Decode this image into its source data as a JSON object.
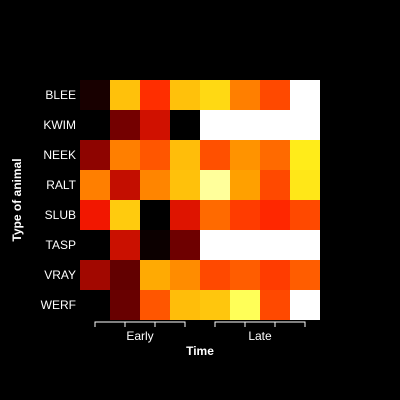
{
  "chart_data": {
    "type": "heatmap",
    "ylabel": "Type of animal",
    "xlabel": "Time",
    "rows": [
      "BLEE",
      "KWIM",
      "NEEK",
      "RALT",
      "SLUB",
      "TASP",
      "VRAY",
      "WERF"
    ],
    "columns": 8,
    "column_groups": [
      {
        "label": "Early",
        "columns": [
          1,
          2,
          3,
          4
        ]
      },
      {
        "label": "Late",
        "columns": [
          5,
          6,
          7,
          8
        ]
      }
    ],
    "colormap": "heat (black to red to yellow to white)",
    "colorscale_stops": [
      "#000000",
      "#7a0000",
      "#ff1a00",
      "#ffa000",
      "#ffff20",
      "#ffffff"
    ],
    "value_range": [
      0,
      1
    ],
    "values": [
      [
        0.04,
        0.67,
        0.43,
        0.67,
        0.72,
        0.55,
        0.47,
        1.0
      ],
      [
        0.0,
        0.19,
        0.33,
        0.0,
        1.0,
        1.0,
        1.0,
        1.0
      ],
      [
        0.23,
        0.55,
        0.49,
        0.66,
        0.48,
        0.58,
        0.52,
        0.76
      ],
      [
        0.55,
        0.31,
        0.56,
        0.67,
        0.91,
        0.6,
        0.47,
        0.75
      ],
      [
        0.38,
        0.69,
        0.0,
        0.35,
        0.52,
        0.45,
        0.42,
        0.47
      ],
      [
        0.0,
        0.32,
        0.02,
        0.18,
        1.0,
        1.0,
        1.0,
        1.0
      ],
      [
        0.26,
        0.16,
        0.62,
        0.57,
        0.47,
        0.5,
        0.45,
        0.5
      ],
      [
        0.0,
        0.17,
        0.49,
        0.66,
        0.68,
        0.85,
        0.47,
        1.0
      ]
    ]
  }
}
